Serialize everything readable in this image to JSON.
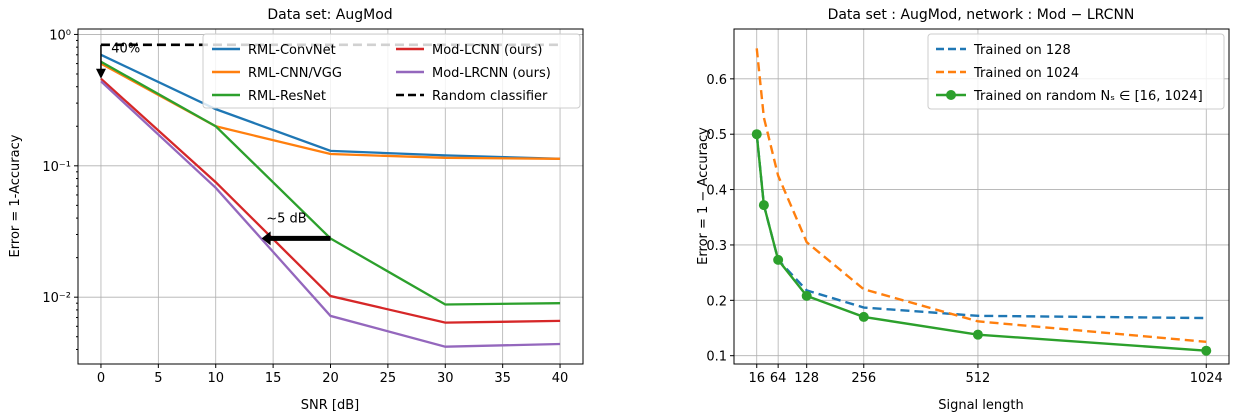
{
  "chart_data": [
    {
      "type": "line",
      "title": "Data set: AugMod",
      "xlabel": "SNR [dB]",
      "ylabel": "Error = 1-Accuracy",
      "yscale": "log",
      "xlim": [
        -2,
        42
      ],
      "ylim": [
        0.0031,
        1.1
      ],
      "xticks": [
        0,
        5,
        10,
        15,
        20,
        25,
        30,
        35,
        40
      ],
      "ytick_labels": [
        "10⁻²",
        "10⁻¹",
        "10⁰"
      ],
      "grid": true,
      "legend_placement": "top-right",
      "series": [
        {
          "name": "RML-ConvNet",
          "color": "#1f77b4",
          "style": "solid",
          "x": [
            0,
            10,
            20,
            30,
            40
          ],
          "y": [
            0.7,
            0.27,
            0.13,
            0.12,
            0.113
          ]
        },
        {
          "name": "RML-CNN/VGG",
          "color": "#ff7f0e",
          "style": "solid",
          "x": [
            0,
            10,
            20,
            30,
            40
          ],
          "y": [
            0.6,
            0.2,
            0.123,
            0.115,
            0.113
          ]
        },
        {
          "name": "RML-ResNet",
          "color": "#2ca02c",
          "style": "solid",
          "x": [
            0,
            10,
            20,
            30,
            40
          ],
          "y": [
            0.62,
            0.2,
            0.028,
            0.0088,
            0.009
          ]
        },
        {
          "name": "Mod-LCNN (ours)",
          "color": "#d62728",
          "style": "solid",
          "x": [
            0,
            10,
            20,
            30,
            40
          ],
          "y": [
            0.46,
            0.075,
            0.0102,
            0.0064,
            0.0066
          ]
        },
        {
          "name": "Mod-LRCNN (ours)",
          "color": "#9467bd",
          "style": "solid",
          "x": [
            0,
            10,
            20,
            30,
            40
          ],
          "y": [
            0.44,
            0.068,
            0.0072,
            0.0042,
            0.0044
          ]
        },
        {
          "name": "Random classifier",
          "color": "#000000",
          "style": "dashed",
          "x": [
            0,
            40
          ],
          "y": [
            0.8333,
            0.8333
          ]
        }
      ],
      "annotations": [
        {
          "text": "40%",
          "arrow_x": 0,
          "arrow_from_y": 0.8333,
          "arrow_to_y": 0.46,
          "text_x": 0.9,
          "text_y": 0.73
        },
        {
          "text": "~5 dB",
          "arrow_x_from": 20,
          "arrow_x_to": 14,
          "arrow_y": 0.028,
          "text_x": 14.4,
          "text_y": 0.037
        }
      ]
    },
    {
      "type": "line",
      "title": "Data set : AugMod, network : Mod − LRCNN",
      "xlabel": "Signal length",
      "ylabel": "Error = 1 − Accuracy",
      "xlim": [
        -35,
        1075
      ],
      "ylim": [
        0.085,
        0.69
      ],
      "xticks": [
        16,
        64,
        128,
        256,
        512,
        1024
      ],
      "yticks": [
        0.1,
        0.2,
        0.3,
        0.4,
        0.5,
        0.6
      ],
      "grid": true,
      "legend_placement": "top-right",
      "series": [
        {
          "name": "Trained on 128",
          "color": "#1f77b4",
          "style": "dashed",
          "x": [
            16,
            32,
            64,
            128,
            256,
            512,
            1024
          ],
          "y": [
            0.5,
            0.372,
            0.273,
            0.218,
            0.187,
            0.172,
            0.168
          ]
        },
        {
          "name": "Trained on 1024",
          "color": "#ff7f0e",
          "style": "dashed",
          "x": [
            16,
            32,
            64,
            128,
            256,
            512,
            1024
          ],
          "y": [
            0.655,
            0.53,
            0.425,
            0.305,
            0.22,
            0.162,
            0.125
          ]
        },
        {
          "name": "Trained on random Nₛ ∈ [16, 1024]",
          "color": "#2ca02c",
          "style": "solid-marker",
          "x": [
            16,
            32,
            64,
            128,
            256,
            512,
            1024
          ],
          "y": [
            0.5,
            0.372,
            0.273,
            0.208,
            0.17,
            0.138,
            0.109
          ]
        }
      ]
    }
  ]
}
